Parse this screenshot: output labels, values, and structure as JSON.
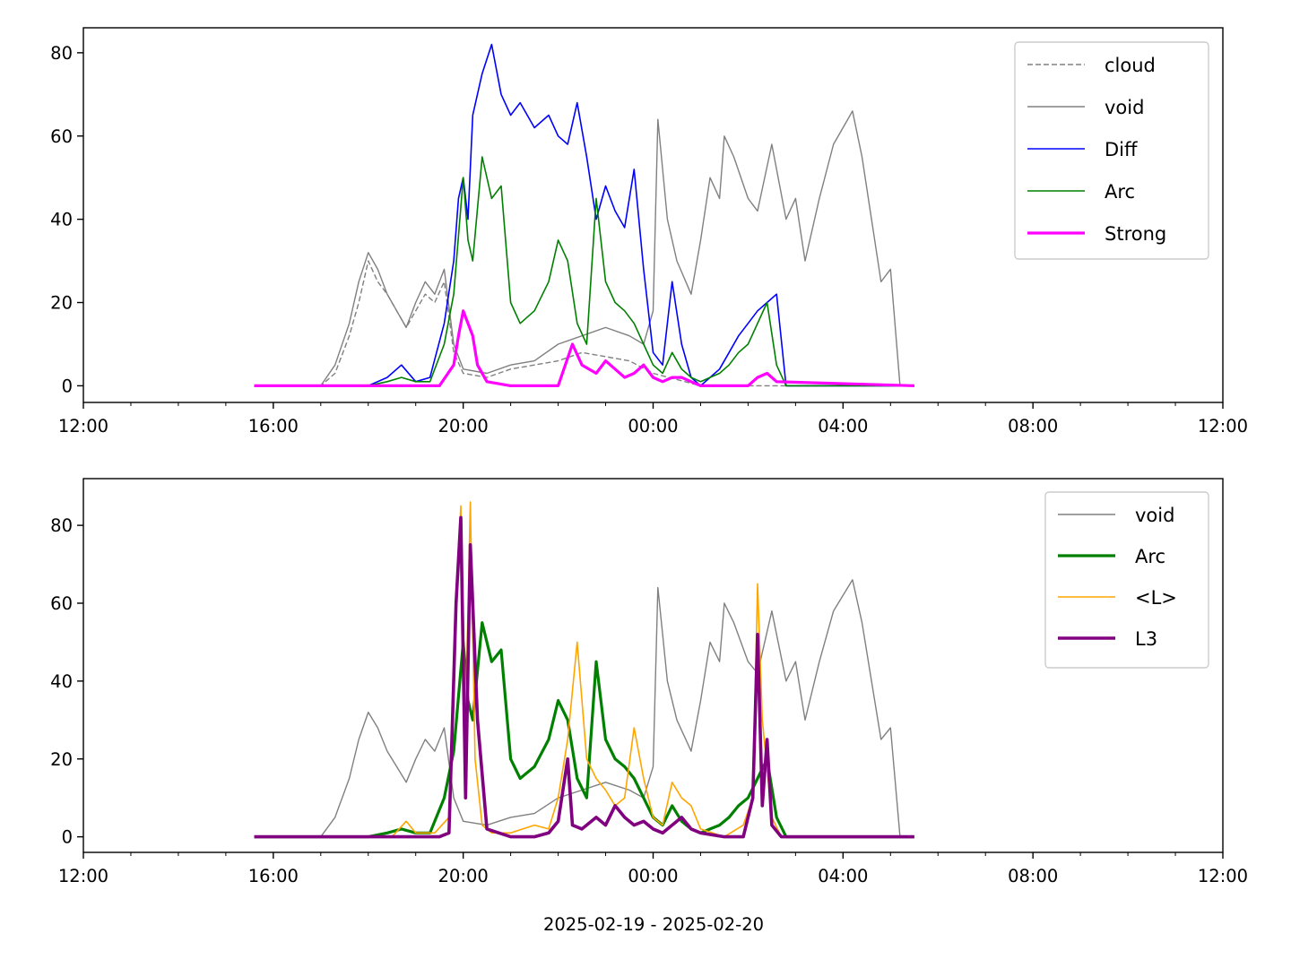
{
  "chart_data": [
    {
      "type": "line",
      "xlim": [
        "12:00",
        "12:00 (+1d)"
      ],
      "ylim": [
        -4,
        86
      ],
      "xticks": [
        "12:00",
        "16:00",
        "20:00",
        "00:00",
        "04:00",
        "08:00",
        "12:00"
      ],
      "yticks": [
        "0",
        "20",
        "40",
        "60",
        "80"
      ],
      "legend_position": "upper right",
      "series": [
        {
          "name": "cloud",
          "color": "#808080",
          "style": "dashed",
          "width": 1.4,
          "x": [
            15.6,
            17.0,
            17.3,
            17.6,
            17.8,
            18.0,
            18.2,
            18.4,
            18.6,
            18.8,
            19.0,
            19.2,
            19.4,
            19.6,
            19.8,
            20.0,
            20.5,
            21.0,
            21.5,
            22.0,
            22.5,
            23.0,
            23.5,
            24.0,
            25.0,
            29.5
          ],
          "y": [
            0,
            0,
            3,
            12,
            20,
            30,
            25,
            22,
            18,
            14,
            18,
            22,
            20,
            25,
            8,
            3,
            2,
            4,
            5,
            6,
            8,
            7,
            6,
            3,
            0,
            0
          ]
        },
        {
          "name": "void",
          "color": "#808080",
          "style": "solid",
          "width": 1.4,
          "x": [
            15.6,
            16.5,
            17.0,
            17.3,
            17.6,
            17.8,
            18.0,
            18.2,
            18.4,
            18.6,
            18.8,
            19.0,
            19.2,
            19.4,
            19.6,
            19.8,
            20.0,
            20.5,
            21.0,
            21.5,
            22.0,
            22.5,
            23.0,
            23.5,
            23.8,
            24.0,
            24.1,
            24.3,
            24.5,
            24.8,
            25.0,
            25.2,
            25.4,
            25.5,
            25.7,
            26.0,
            26.2,
            26.5,
            26.8,
            27.0,
            27.2,
            27.5,
            27.8,
            28.0,
            28.2,
            28.4,
            28.6,
            28.8,
            29.0,
            29.2
          ],
          "y": [
            0,
            0,
            0,
            5,
            15,
            25,
            32,
            28,
            22,
            18,
            14,
            20,
            25,
            22,
            28,
            10,
            4,
            3,
            5,
            6,
            10,
            12,
            14,
            12,
            10,
            18,
            64,
            40,
            30,
            22,
            35,
            50,
            45,
            60,
            55,
            45,
            42,
            58,
            40,
            45,
            30,
            45,
            58,
            62,
            66,
            55,
            40,
            25,
            28,
            0
          ]
        },
        {
          "name": "Diff",
          "color": "#0000ff",
          "style": "solid",
          "width": 1.6,
          "x": [
            15.6,
            18.0,
            18.4,
            18.7,
            19.0,
            19.3,
            19.6,
            19.8,
            19.9,
            20.0,
            20.1,
            20.2,
            20.4,
            20.6,
            20.8,
            21.0,
            21.2,
            21.5,
            21.8,
            22.0,
            22.2,
            22.4,
            22.6,
            22.8,
            23.0,
            23.2,
            23.4,
            23.6,
            23.8,
            24.0,
            24.2,
            24.4,
            24.6,
            24.8,
            25.0,
            25.2,
            25.4,
            25.6,
            25.8,
            26.0,
            26.2,
            26.4,
            26.6,
            26.8,
            27.0,
            29.5
          ],
          "y": [
            0,
            0,
            2,
            5,
            1,
            2,
            15,
            30,
            45,
            50,
            40,
            65,
            75,
            82,
            70,
            65,
            68,
            62,
            65,
            60,
            58,
            68,
            55,
            40,
            48,
            42,
            38,
            52,
            28,
            8,
            5,
            25,
            10,
            2,
            0,
            2,
            4,
            8,
            12,
            15,
            18,
            20,
            22,
            0,
            0,
            0
          ]
        },
        {
          "name": "Arc",
          "color": "#008000",
          "style": "solid",
          "width": 1.6,
          "x": [
            15.6,
            18.0,
            18.4,
            18.7,
            19.0,
            19.3,
            19.6,
            19.8,
            20.0,
            20.1,
            20.2,
            20.4,
            20.6,
            20.8,
            21.0,
            21.2,
            21.5,
            21.8,
            22.0,
            22.2,
            22.4,
            22.6,
            22.8,
            23.0,
            23.2,
            23.4,
            23.6,
            23.8,
            24.0,
            24.2,
            24.4,
            24.6,
            24.8,
            25.0,
            25.2,
            25.4,
            25.6,
            25.8,
            26.0,
            26.2,
            26.4,
            26.6,
            26.8,
            27.0,
            29.5
          ],
          "y": [
            0,
            0,
            1,
            2,
            1,
            1,
            10,
            22,
            50,
            35,
            30,
            55,
            45,
            48,
            20,
            15,
            18,
            25,
            35,
            30,
            15,
            10,
            45,
            25,
            20,
            18,
            15,
            10,
            5,
            3,
            8,
            4,
            2,
            1,
            2,
            3,
            5,
            8,
            10,
            15,
            20,
            5,
            0,
            0,
            0
          ]
        },
        {
          "name": "Strong",
          "color": "#ff00ff",
          "style": "solid",
          "width": 3.2,
          "x": [
            15.6,
            19.5,
            19.8,
            19.9,
            20.0,
            20.1,
            20.2,
            20.3,
            20.5,
            21.0,
            21.5,
            22.0,
            22.3,
            22.5,
            22.8,
            23.0,
            23.2,
            23.4,
            23.6,
            23.8,
            24.0,
            24.2,
            24.4,
            24.6,
            24.8,
            25.0,
            25.5,
            26.0,
            26.2,
            26.4,
            26.6,
            29.5
          ],
          "y": [
            0,
            0,
            5,
            12,
            18,
            15,
            12,
            5,
            1,
            0,
            0,
            0,
            10,
            5,
            3,
            6,
            4,
            2,
            3,
            5,
            2,
            1,
            2,
            2,
            1,
            0,
            0,
            0,
            2,
            3,
            1,
            0
          ]
        }
      ]
    },
    {
      "type": "line",
      "xlim": [
        "12:00",
        "12:00 (+1d)"
      ],
      "ylim": [
        -4,
        92
      ],
      "xticks": [
        "12:00",
        "16:00",
        "20:00",
        "00:00",
        "04:00",
        "08:00",
        "12:00"
      ],
      "yticks": [
        "0",
        "20",
        "40",
        "60",
        "80"
      ],
      "xlabel": "2025-02-19 - 2025-02-20",
      "legend_position": "upper right",
      "series": [
        {
          "name": "void",
          "color": "#808080",
          "style": "solid",
          "width": 1.4,
          "x": [
            15.6,
            16.5,
            17.0,
            17.3,
            17.6,
            17.8,
            18.0,
            18.2,
            18.4,
            18.6,
            18.8,
            19.0,
            19.2,
            19.4,
            19.6,
            19.8,
            20.0,
            20.5,
            21.0,
            21.5,
            22.0,
            22.5,
            23.0,
            23.5,
            23.8,
            24.0,
            24.1,
            24.3,
            24.5,
            24.8,
            25.0,
            25.2,
            25.4,
            25.5,
            25.7,
            26.0,
            26.2,
            26.5,
            26.8,
            27.0,
            27.2,
            27.5,
            27.8,
            28.0,
            28.2,
            28.4,
            28.6,
            28.8,
            29.0,
            29.2
          ],
          "y": [
            0,
            0,
            0,
            5,
            15,
            25,
            32,
            28,
            22,
            18,
            14,
            20,
            25,
            22,
            28,
            10,
            4,
            3,
            5,
            6,
            10,
            12,
            14,
            12,
            10,
            18,
            64,
            40,
            30,
            22,
            35,
            50,
            45,
            60,
            55,
            45,
            42,
            58,
            40,
            45,
            30,
            45,
            58,
            62,
            66,
            55,
            40,
            25,
            28,
            0
          ]
        },
        {
          "name": "Arc",
          "color": "#008000",
          "style": "solid",
          "width": 3.2,
          "x": [
            15.6,
            18.0,
            18.4,
            18.7,
            19.0,
            19.3,
            19.6,
            19.8,
            20.0,
            20.1,
            20.2,
            20.4,
            20.6,
            20.8,
            21.0,
            21.2,
            21.5,
            21.8,
            22.0,
            22.2,
            22.4,
            22.6,
            22.8,
            23.0,
            23.2,
            23.4,
            23.6,
            23.8,
            24.0,
            24.2,
            24.4,
            24.6,
            24.8,
            25.0,
            25.2,
            25.4,
            25.6,
            25.8,
            26.0,
            26.2,
            26.4,
            26.6,
            26.8,
            27.0,
            29.5
          ],
          "y": [
            0,
            0,
            1,
            2,
            1,
            1,
            10,
            22,
            50,
            35,
            30,
            55,
            45,
            48,
            20,
            15,
            18,
            25,
            35,
            30,
            15,
            10,
            45,
            25,
            20,
            18,
            15,
            10,
            5,
            3,
            8,
            4,
            2,
            1,
            2,
            3,
            5,
            8,
            10,
            15,
            20,
            5,
            0,
            0,
            0
          ]
        },
        {
          "name": "<L>",
          "color": "#ffa500",
          "style": "solid",
          "width": 1.6,
          "x": [
            15.6,
            18.5,
            18.8,
            19.0,
            19.4,
            19.7,
            19.85,
            19.95,
            20.05,
            20.15,
            20.25,
            20.4,
            20.6,
            21.0,
            21.5,
            21.8,
            22.0,
            22.2,
            22.4,
            22.6,
            22.8,
            23.0,
            23.2,
            23.4,
            23.6,
            23.8,
            24.0,
            24.2,
            24.4,
            24.6,
            24.8,
            25.0,
            25.5,
            25.9,
            26.1,
            26.2,
            26.3,
            26.5,
            26.7,
            29.5
          ],
          "y": [
            0,
            0,
            4,
            1,
            1,
            5,
            60,
            85,
            30,
            86,
            20,
            3,
            1,
            1,
            3,
            2,
            10,
            25,
            50,
            20,
            15,
            12,
            8,
            10,
            28,
            15,
            5,
            3,
            14,
            10,
            8,
            2,
            0,
            3,
            10,
            65,
            30,
            5,
            0,
            0
          ]
        },
        {
          "name": "L3",
          "color": "#800080",
          "style": "solid",
          "width": 3.6,
          "x": [
            15.6,
            19.5,
            19.7,
            19.85,
            19.95,
            20.05,
            20.15,
            20.3,
            20.5,
            21.0,
            21.5,
            21.8,
            22.0,
            22.1,
            22.2,
            22.3,
            22.5,
            22.8,
            23.0,
            23.2,
            23.4,
            23.6,
            23.8,
            24.0,
            24.2,
            24.4,
            24.6,
            24.8,
            25.0,
            25.5,
            25.9,
            26.1,
            26.2,
            26.3,
            26.4,
            26.5,
            26.7,
            29.5
          ],
          "y": [
            0,
            0,
            1,
            60,
            82,
            10,
            75,
            30,
            2,
            0,
            0,
            1,
            4,
            12,
            20,
            3,
            2,
            5,
            3,
            8,
            5,
            3,
            4,
            2,
            1,
            3,
            5,
            2,
            1,
            0,
            0,
            10,
            52,
            8,
            25,
            3,
            0,
            0
          ]
        }
      ]
    }
  ]
}
